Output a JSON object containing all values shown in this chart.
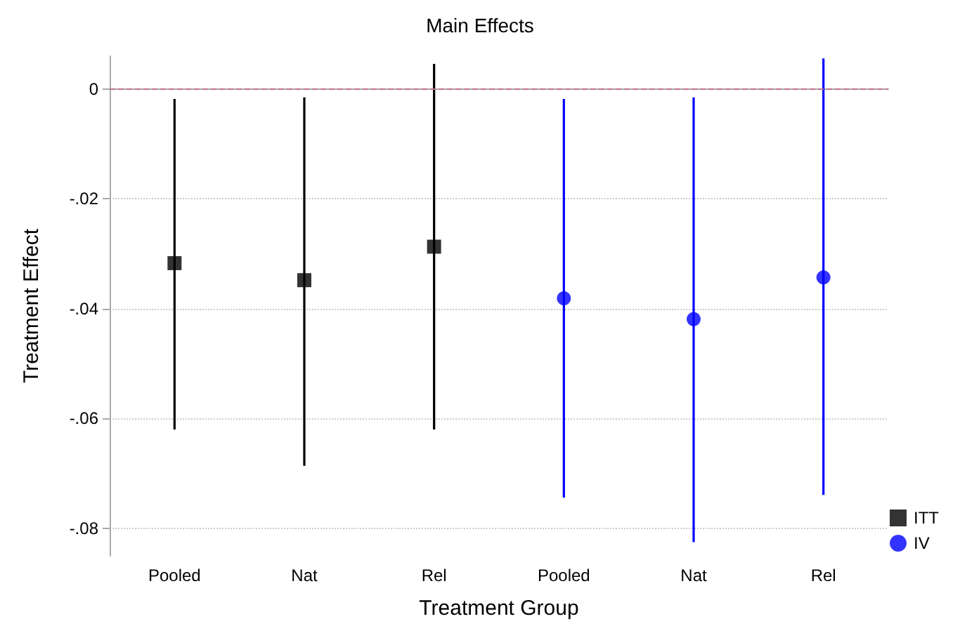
{
  "chart_data": {
    "type": "scatter",
    "title": "Main Effects",
    "xlabel": "Treatment Group",
    "ylabel": "Treatment Effect",
    "categories": [
      "Pooled",
      "Nat",
      "Rel",
      "Pooled",
      "Nat",
      "Rel"
    ],
    "series": [
      {
        "name": "ITT",
        "color": "#000000",
        "marker": "square",
        "values": [
          -0.0317,
          -0.0348,
          -0.0287,
          null,
          null,
          null
        ],
        "errors": [
          [
            -0.062,
            -0.0018
          ],
          [
            -0.0686,
            -0.0015
          ],
          [
            -0.062,
            0.0046
          ],
          null,
          null,
          null
        ]
      },
      {
        "name": "IV",
        "color": "#0000ff",
        "marker": "circle",
        "values": [
          null,
          null,
          null,
          -0.0381,
          -0.0419,
          -0.0343
        ],
        "errors": [
          null,
          null,
          null,
          [
            -0.0744,
            -0.0018
          ],
          [
            -0.0825,
            -0.0015
          ],
          [
            -0.0739,
            0.0056
          ]
        ]
      }
    ],
    "ylim": [
      -0.085,
      0.006
    ],
    "yticks": [
      {
        "value": -0.08,
        "label": "-.08"
      },
      {
        "value": -0.06,
        "label": "-.06"
      },
      {
        "value": -0.04,
        "label": "-.04"
      },
      {
        "value": -0.02,
        "label": "-.02"
      },
      0
    ],
    "ref_lines": [
      {
        "axis": "y",
        "value": 0,
        "color": "#c07090",
        "line_style": "dashed"
      }
    ],
    "grid": "y",
    "legend": "bottom right"
  }
}
